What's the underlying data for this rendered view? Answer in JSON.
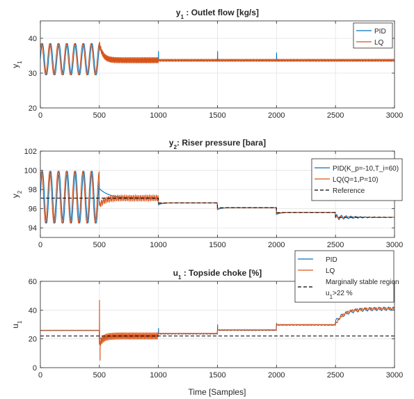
{
  "x_axis": {
    "label": "Time [Samples]"
  },
  "chart_data": [
    {
      "type": "line",
      "title_main": "y",
      "title_sub": "1",
      "title_rest": " : Outlet flow [kg/s]",
      "ylabel_main": "y",
      "ylabel_sub": "1",
      "xlim": [
        0,
        3000
      ],
      "ylim": [
        20,
        45
      ],
      "xticks": [
        0,
        500,
        1000,
        1500,
        2000,
        2500,
        3000
      ],
      "yticks": [
        20,
        30,
        40
      ],
      "grid": true,
      "legend_position": "top-right",
      "colors": {
        "PID": "#0072BD",
        "LQ": "#D95319"
      },
      "series": [
        {
          "name": "PID",
          "legend_label": "PID",
          "segments": [
            {
              "kind": "osc",
              "x0": 0,
              "x1": 500,
              "mean": 34,
              "amp": 4.5,
              "period": 70
            },
            {
              "kind": "decay",
              "x0": 500,
              "x1": 1000,
              "start": 38,
              "target": 33.6,
              "tau": 40,
              "ripple": 0.4,
              "ripple_period": 22
            },
            {
              "kind": "flat",
              "x0": 1000,
              "x1": 3000,
              "value": 33.6,
              "ripple": 0.2,
              "ripple_period": 22
            }
          ],
          "spikes": [
            {
              "x": 1000,
              "value": 36.3
            },
            {
              "x": 1500,
              "value": 36.3
            },
            {
              "x": 2000,
              "value": 35.9
            }
          ]
        },
        {
          "name": "LQ",
          "legend_label": "LQ",
          "segments": [
            {
              "kind": "osc",
              "x0": 0,
              "x1": 500,
              "mean": 34,
              "amp": 4.5,
              "period": 70,
              "phase": 8
            },
            {
              "kind": "decay",
              "x0": 500,
              "x1": 1000,
              "start": 38.4,
              "target": 33.7,
              "tau": 30,
              "ripple": 0.9,
              "ripple_period": 10
            },
            {
              "kind": "flat",
              "x0": 1000,
              "x1": 3000,
              "value": 33.7,
              "ripple": 0.35,
              "ripple_period": 12
            }
          ],
          "spikes": []
        }
      ]
    },
    {
      "type": "line",
      "title_main": "y",
      "title_sub": "2",
      "title_rest": ": Riser pressure [bara]",
      "ylabel_main": "y",
      "ylabel_sub": "2",
      "xlim": [
        0,
        3000
      ],
      "ylim": [
        93,
        102
      ],
      "xticks": [
        0,
        500,
        1000,
        1500,
        2000,
        2500,
        3000
      ],
      "yticks": [
        94,
        96,
        98,
        100,
        102
      ],
      "grid": true,
      "legend_position": "right",
      "colors": {
        "PID": "#0072BD",
        "LQ": "#D95319",
        "Reference": "#000000"
      },
      "series": [
        {
          "name": "PID",
          "legend_label": "PID(K_p=-10,T_i=60)",
          "segments": [
            {
              "kind": "osc",
              "x0": 0,
              "x1": 500,
              "mean": 97.2,
              "amp": 2.7,
              "period": 70
            },
            {
              "kind": "decay",
              "x0": 500,
              "x1": 1000,
              "start": 98.1,
              "target": 97.1,
              "tau": 80,
              "ripple": 0,
              "ripple_period": 30
            },
            {
              "kind": "decay",
              "x0": 1000,
              "x1": 1500,
              "start": 96.4,
              "target": 96.6,
              "tau": 30,
              "ripple": 0,
              "ripple_period": 30
            },
            {
              "kind": "decay",
              "x0": 1500,
              "x1": 2000,
              "start": 95.9,
              "target": 96.1,
              "tau": 30,
              "ripple": 0,
              "ripple_period": 30
            },
            {
              "kind": "decay",
              "x0": 2000,
              "x1": 2500,
              "start": 95.4,
              "target": 95.6,
              "tau": 30,
              "ripple": 0,
              "ripple_period": 30
            },
            {
              "kind": "decay",
              "x0": 2500,
              "x1": 3000,
              "start": 95.1,
              "target": 95.1,
              "tau": 80,
              "ripple": 0.3,
              "ripple_period": 40,
              "ripple_decay": 150
            }
          ],
          "spikes": []
        },
        {
          "name": "LQ",
          "legend_label": "LQ(Q=1,P=10)",
          "segments": [
            {
              "kind": "osc",
              "x0": 0,
              "x1": 500,
              "mean": 97.2,
              "amp": 2.7,
              "period": 70,
              "phase": 8
            },
            {
              "kind": "decay",
              "x0": 500,
              "x1": 1000,
              "start": 96.3,
              "target": 97.1,
              "tau": 40,
              "ripple": 0.3,
              "ripple_period": 15
            },
            {
              "kind": "decay",
              "x0": 1000,
              "x1": 1500,
              "start": 96.5,
              "target": 96.6,
              "tau": 20,
              "ripple": 0,
              "ripple_period": 30
            },
            {
              "kind": "decay",
              "x0": 1500,
              "x1": 2000,
              "start": 96.0,
              "target": 96.1,
              "tau": 20,
              "ripple": 0,
              "ripple_period": 30
            },
            {
              "kind": "decay",
              "x0": 2000,
              "x1": 2500,
              "start": 95.5,
              "target": 95.6,
              "tau": 20,
              "ripple": 0,
              "ripple_period": 30
            },
            {
              "kind": "decay",
              "x0": 2500,
              "x1": 3000,
              "start": 95.1,
              "target": 95.1,
              "tau": 80,
              "ripple": 0.15,
              "ripple_period": 35,
              "ripple_decay": 120
            }
          ],
          "spikes": []
        },
        {
          "name": "Reference",
          "legend_label": "Reference",
          "dashed": true,
          "steps": [
            [
              0,
              97.1
            ],
            [
              1000,
              96.6
            ],
            [
              1500,
              96.1
            ],
            [
              2000,
              95.6
            ],
            [
              2500,
              95.1
            ],
            [
              3000,
              95.1
            ]
          ]
        }
      ]
    },
    {
      "type": "line",
      "title_main": "u",
      "title_sub": "1",
      "title_rest": " : Topside choke [%]",
      "ylabel_main": "u",
      "ylabel_sub": "1",
      "xlim": [
        0,
        3000
      ],
      "ylim": [
        0,
        60
      ],
      "xticks": [
        0,
        500,
        1000,
        1500,
        2000,
        2500,
        3000
      ],
      "yticks": [
        0,
        20,
        40,
        60
      ],
      "grid": true,
      "legend_position": "top-right",
      "colors": {
        "PID": "#0072BD",
        "LQ": "#D95319",
        "Marginal": "#000000"
      },
      "series": [
        {
          "name": "PID",
          "legend_label": "PID",
          "segments": [
            {
              "kind": "flat",
              "x0": 0,
              "x1": 500,
              "value": 25.8,
              "ripple": 0,
              "ripple_period": 30
            },
            {
              "kind": "decay",
              "x0": 500,
              "x1": 1000,
              "start": 20,
              "target": 21.8,
              "tau": 50,
              "ripple": 0.3,
              "ripple_period": 30
            },
            {
              "kind": "flat",
              "x0": 1000,
              "x1": 1500,
              "value": 23.5,
              "ripple": 0.2,
              "ripple_period": 30
            },
            {
              "kind": "flat",
              "x0": 1500,
              "x1": 2000,
              "value": 26,
              "ripple": 0.2,
              "ripple_period": 30
            },
            {
              "kind": "flat",
              "x0": 2000,
              "x1": 2500,
              "value": 29.6,
              "ripple": 0.2,
              "ripple_period": 30
            },
            {
              "kind": "decay",
              "x0": 2500,
              "x1": 3000,
              "start": 32,
              "target": 41,
              "tau": 90,
              "ripple": 1.2,
              "ripple_period": 40
            }
          ],
          "spikes": [
            {
              "x": 1000,
              "value": 27.5
            },
            {
              "x": 1500,
              "value": 30
            },
            {
              "x": 2000,
              "value": 31
            }
          ]
        },
        {
          "name": "LQ",
          "legend_label": "LQ",
          "segments": [
            {
              "kind": "flat",
              "x0": 0,
              "x1": 500,
              "value": 26,
              "ripple": 0,
              "ripple_period": 30
            },
            {
              "kind": "decay",
              "x0": 500,
              "x1": 1000,
              "start": 16,
              "target": 22,
              "tau": 30,
              "ripple": 2.5,
              "ripple_period": 12
            },
            {
              "kind": "flat",
              "x0": 1000,
              "x1": 1500,
              "value": 23.7,
              "ripple": 0.3,
              "ripple_period": 14
            },
            {
              "kind": "flat",
              "x0": 1500,
              "x1": 2000,
              "value": 26.2,
              "ripple": 0.3,
              "ripple_period": 14
            },
            {
              "kind": "flat",
              "x0": 2000,
              "x1": 2500,
              "value": 29.8,
              "ripple": 0.3,
              "ripple_period": 14
            },
            {
              "kind": "decay",
              "x0": 2500,
              "x1": 3000,
              "start": 30,
              "target": 41,
              "tau": 70,
              "ripple": 0.8,
              "ripple_period": 20
            }
          ],
          "spikes": [
            {
              "x": 500,
              "value": 47
            },
            {
              "x": 505,
              "value": 5
            }
          ]
        },
        {
          "name": "Marginal",
          "legend_label": "Marginally stable region",
          "legend_label_2_main": "u",
          "legend_label_2_sub": "1",
          "legend_label_2_rest": ">22 %",
          "dashed": true,
          "steps": [
            [
              0,
              22
            ],
            [
              3000,
              22
            ]
          ]
        }
      ]
    }
  ]
}
